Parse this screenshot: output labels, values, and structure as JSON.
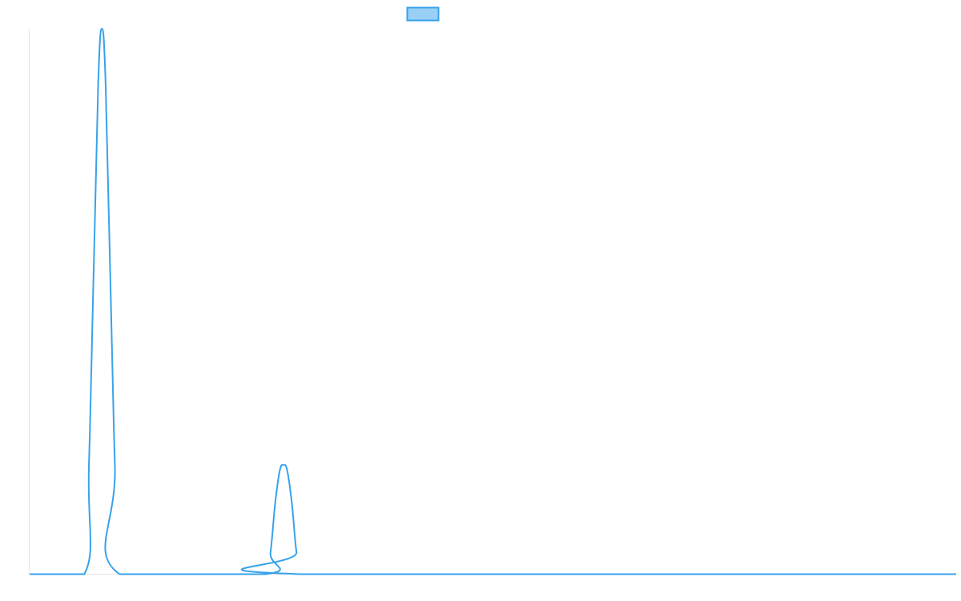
{
  "chart_data": {
    "type": "line",
    "title": "",
    "xlabel": "",
    "ylabel": "",
    "xlim": [
      0,
      100
    ],
    "ylim": [
      0,
      1
    ],
    "grid": false,
    "legend_placement": "top",
    "series": [
      {
        "color": "#36a2eb",
        "fill": "#9ad0f5",
        "points": [
          [
            0,
            0
          ],
          [
            5.9,
            0
          ],
          [
            6.4,
            0.2
          ],
          [
            6.9,
            0.55
          ],
          [
            7.4,
            0.9
          ],
          [
            7.8,
            1.0
          ],
          [
            8.2,
            0.9
          ],
          [
            8.7,
            0.55
          ],
          [
            9.2,
            0.2
          ],
          [
            9.7,
            0
          ],
          [
            25.5,
            0
          ],
          [
            26.0,
            0.04
          ],
          [
            26.5,
            0.13
          ],
          [
            27.0,
            0.19
          ],
          [
            27.4,
            0.2
          ],
          [
            27.8,
            0.19
          ],
          [
            28.3,
            0.13
          ],
          [
            28.8,
            0.04
          ],
          [
            29.3,
            0
          ],
          [
            100,
            0
          ]
        ]
      }
    ]
  }
}
